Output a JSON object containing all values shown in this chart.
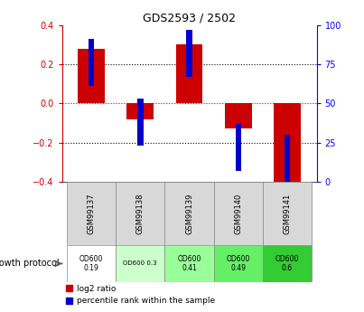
{
  "title": "GDS2593 / 2502",
  "samples": [
    "GSM99137",
    "GSM99138",
    "GSM99139",
    "GSM99140",
    "GSM99141"
  ],
  "log2_ratio": [
    0.28,
    -0.08,
    0.3,
    -0.13,
    -0.4
  ],
  "percentile_display": [
    76,
    38,
    82,
    22,
    15
  ],
  "ylim_left": [
    -0.4,
    0.4
  ],
  "ylim_right": [
    0,
    100
  ],
  "yticks_left": [
    -0.4,
    -0.2,
    0.0,
    0.2,
    0.4
  ],
  "yticks_right": [
    0,
    25,
    50,
    75,
    100
  ],
  "red_color": "#cc0000",
  "blue_color": "#0000cc",
  "zero_line_color": "#cc0000",
  "protocol_labels": [
    "OD600\n0.19",
    "OD600 0.3",
    "OD600\n0.41",
    "OD600\n0.49",
    "OD600\n0.6"
  ],
  "protocol_bg": [
    "#ffffff",
    "#ccffcc",
    "#99ff99",
    "#66ee66",
    "#33cc33"
  ],
  "label_log2": "log2 ratio",
  "label_percentile": "percentile rank within the sample",
  "growth_protocol_label": "growth protocol"
}
